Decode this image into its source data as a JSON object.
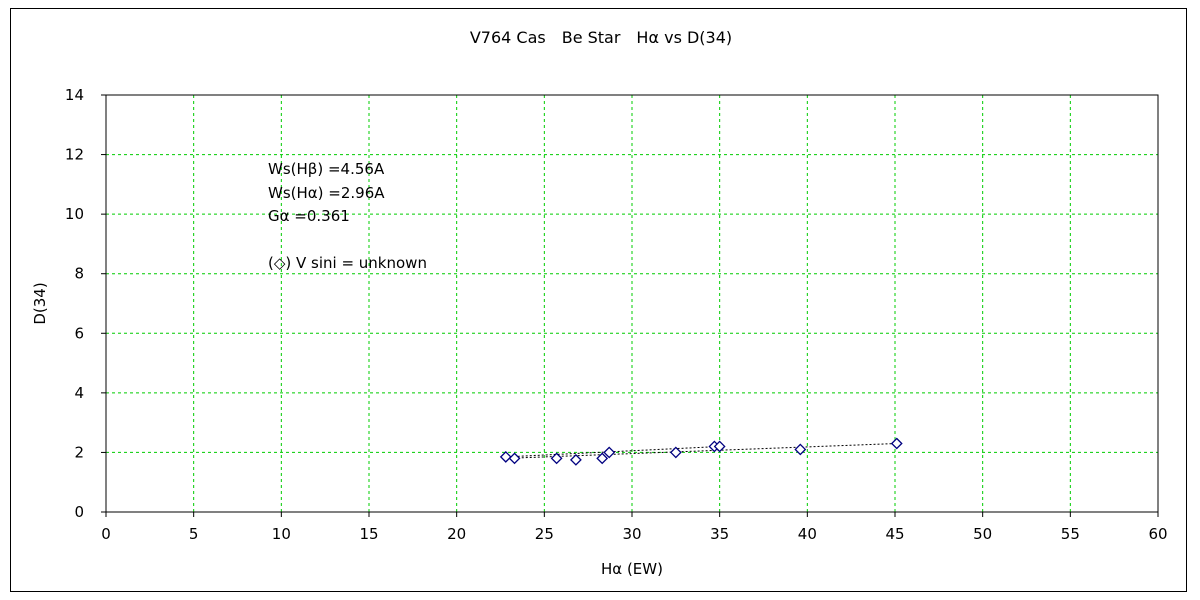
{
  "chart_data": {
    "type": "scatter",
    "title": "V764 Cas　Be Star　Hα vs D(34)",
    "xlabel": "Hα (EW)",
    "ylabel": "D(34)",
    "xlim": [
      0,
      60
    ],
    "ylim": [
      0,
      14
    ],
    "x_ticks": [
      0,
      5,
      10,
      15,
      20,
      25,
      30,
      35,
      40,
      45,
      50,
      55,
      60
    ],
    "y_ticks": [
      0,
      2,
      4,
      6,
      8,
      10,
      12,
      14
    ],
    "grid": true,
    "colors": {
      "marker": "#000080",
      "grid": "#00cc00",
      "line": "#000000"
    },
    "annotations": [
      "Ws(Hβ) =4.56A",
      "Ws(Hα) =2.96A",
      "Gα =0.361",
      "(◇) V sini = unknown"
    ],
    "series": [
      {
        "marker": "diamond",
        "points": [
          [
            22.8,
            1.85
          ],
          [
            23.3,
            1.8
          ],
          [
            25.7,
            1.8
          ],
          [
            26.8,
            1.75
          ],
          [
            28.3,
            1.8
          ],
          [
            28.7,
            2.0
          ],
          [
            32.5,
            2.0
          ],
          [
            34.7,
            2.2
          ],
          [
            35.0,
            2.2
          ],
          [
            39.6,
            2.1
          ],
          [
            45.1,
            2.3
          ]
        ]
      }
    ],
    "trendlines": [
      {
        "style": "dotted",
        "from": [
          22.8,
          1.8
        ],
        "to": [
          45.1,
          2.3
        ]
      },
      {
        "style": "dotted",
        "from": [
          22.8,
          1.85
        ],
        "to": [
          35.0,
          2.2
        ]
      }
    ]
  }
}
